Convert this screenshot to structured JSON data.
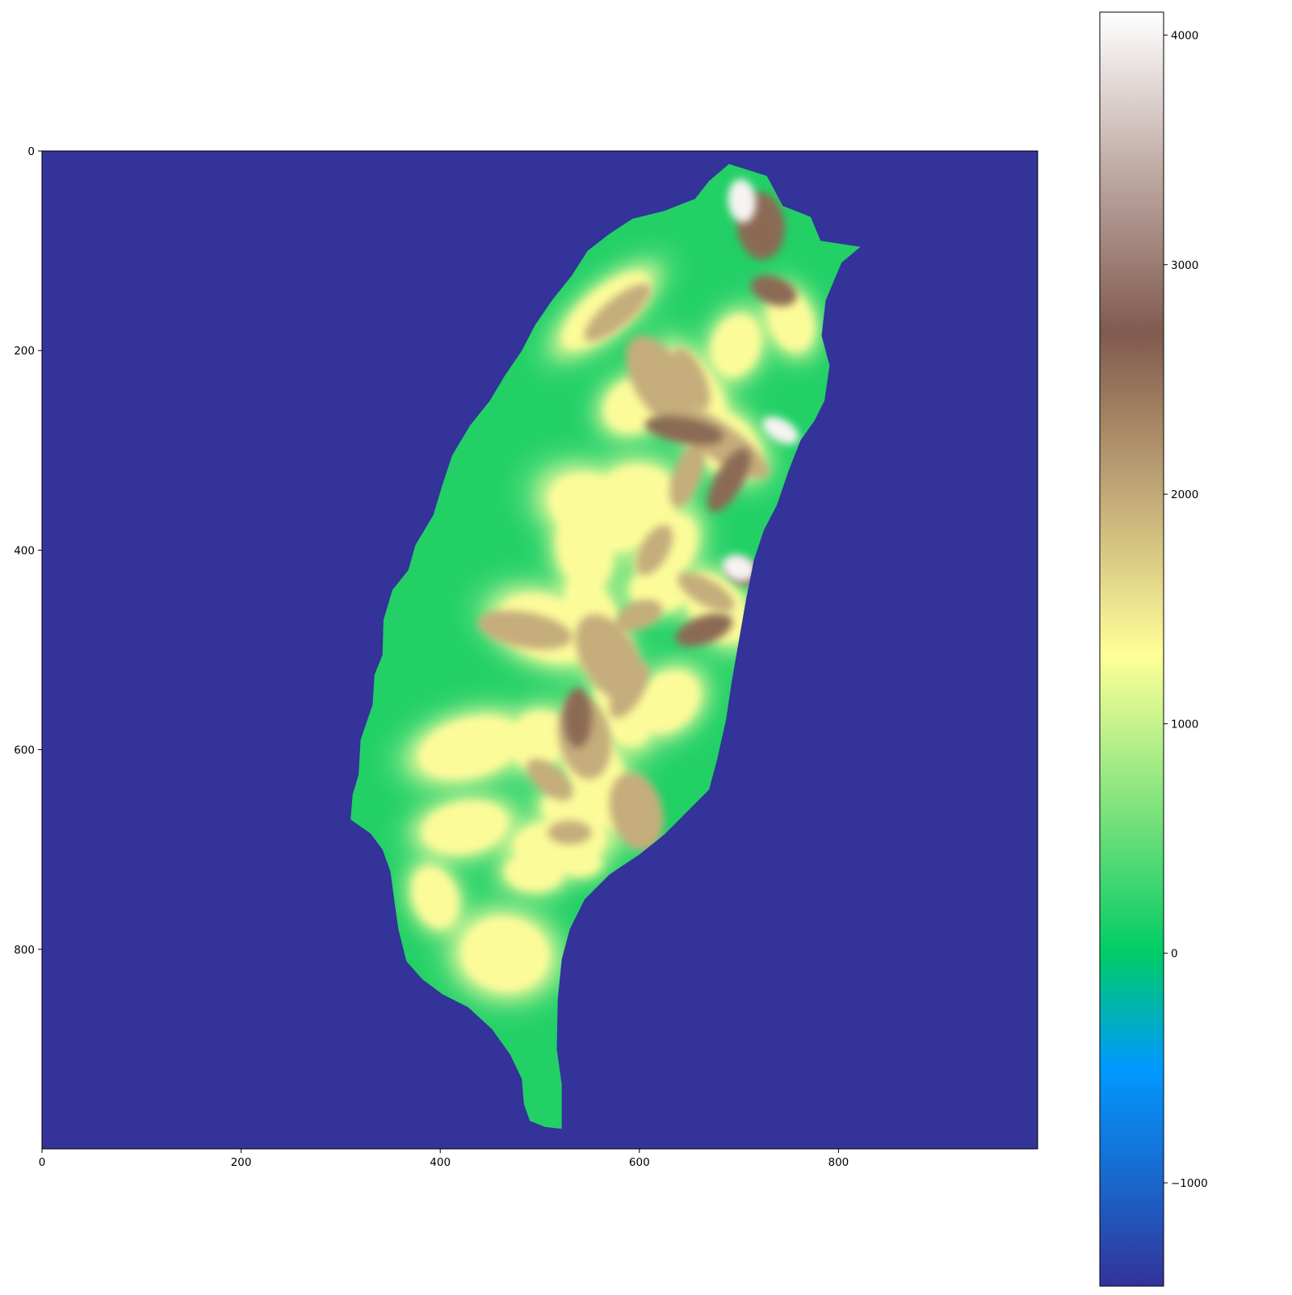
{
  "chart_data": {
    "type": "heatmap",
    "title": "",
    "xlabel": "",
    "ylabel": "",
    "xlim": [
      0,
      1000
    ],
    "ylim": [
      1000,
      0
    ],
    "x_ticks": [
      {
        "value": 0,
        "label": "0"
      },
      {
        "value": 200,
        "label": "200"
      },
      {
        "value": 400,
        "label": "400"
      },
      {
        "value": 600,
        "label": "600"
      },
      {
        "value": 800,
        "label": "800"
      }
    ],
    "y_ticks": [
      {
        "value": 0,
        "label": "0"
      },
      {
        "value": 200,
        "label": "200"
      },
      {
        "value": 400,
        "label": "400"
      },
      {
        "value": 600,
        "label": "600"
      },
      {
        "value": 800,
        "label": "800"
      }
    ],
    "colorbar": {
      "range": [
        -1450,
        4100
      ],
      "ticks": [
        {
          "value": 4000,
          "label": "4000"
        },
        {
          "value": 3000,
          "label": "3000"
        },
        {
          "value": 2000,
          "label": "2000"
        },
        {
          "value": 1000,
          "label": "1000"
        },
        {
          "value": 0,
          "label": "0"
        },
        {
          "value": -1000,
          "label": "−1000"
        }
      ],
      "colormap": [
        {
          "value": -1450,
          "color": "#333399"
        },
        {
          "value": -1000,
          "color": "#1a66cc"
        },
        {
          "value": -500,
          "color": "#0099ff"
        },
        {
          "value": 0,
          "color": "#00cc66"
        },
        {
          "value": 500,
          "color": "#66dd77"
        },
        {
          "value": 1300,
          "color": "#ffff99"
        },
        {
          "value": 2000,
          "color": "#c2a877"
        },
        {
          "value": 2700,
          "color": "#805a4e"
        },
        {
          "value": 3400,
          "color": "#bfa9a3"
        },
        {
          "value": 4100,
          "color": "#ffffff"
        }
      ]
    },
    "colors": {
      "sea": "#333399",
      "lowland": "#22d066",
      "plain": "#55dc7a",
      "hill": "#b5ee8e",
      "upland": "#fcfb9a",
      "mountain": "#c5ad7c",
      "ridge": "#8b6a55",
      "summit": "#f6f3f2"
    },
    "island_outline": [
      [
        690,
        13
      ],
      [
        728,
        25
      ],
      [
        744,
        55
      ],
      [
        772,
        66
      ],
      [
        782,
        90
      ],
      [
        822,
        96
      ],
      [
        803,
        112
      ],
      [
        787,
        150
      ],
      [
        783,
        185
      ],
      [
        791,
        215
      ],
      [
        786,
        250
      ],
      [
        776,
        270
      ],
      [
        762,
        290
      ],
      [
        750,
        320
      ],
      [
        738,
        355
      ],
      [
        725,
        380
      ],
      [
        715,
        410
      ],
      [
        707,
        450
      ],
      [
        700,
        490
      ],
      [
        693,
        530
      ],
      [
        687,
        570
      ],
      [
        678,
        610
      ],
      [
        670,
        640
      ],
      [
        650,
        660
      ],
      [
        625,
        685
      ],
      [
        600,
        705
      ],
      [
        570,
        725
      ],
      [
        545,
        750
      ],
      [
        530,
        780
      ],
      [
        522,
        810
      ],
      [
        518,
        850
      ],
      [
        517,
        900
      ],
      [
        522,
        935
      ],
      [
        522,
        980
      ],
      [
        505,
        978
      ],
      [
        490,
        972
      ],
      [
        484,
        955
      ],
      [
        482,
        930
      ],
      [
        470,
        905
      ],
      [
        452,
        880
      ],
      [
        428,
        858
      ],
      [
        402,
        845
      ],
      [
        382,
        830
      ],
      [
        366,
        812
      ],
      [
        358,
        780
      ],
      [
        354,
        752
      ],
      [
        350,
        722
      ],
      [
        342,
        700
      ],
      [
        330,
        684
      ],
      [
        310,
        670
      ],
      [
        312,
        645
      ],
      [
        318,
        625
      ],
      [
        320,
        590
      ],
      [
        332,
        555
      ],
      [
        334,
        525
      ],
      [
        342,
        505
      ],
      [
        343,
        470
      ],
      [
        352,
        440
      ],
      [
        368,
        420
      ],
      [
        375,
        395
      ],
      [
        393,
        365
      ],
      [
        402,
        335
      ],
      [
        412,
        305
      ],
      [
        430,
        275
      ],
      [
        450,
        250
      ],
      [
        465,
        225
      ],
      [
        482,
        200
      ],
      [
        495,
        175
      ],
      [
        512,
        150
      ],
      [
        532,
        125
      ],
      [
        548,
        100
      ],
      [
        570,
        83
      ],
      [
        593,
        68
      ],
      [
        625,
        60
      ],
      [
        656,
        48
      ],
      [
        670,
        30
      ]
    ],
    "hills": [
      [
        566,
        160,
        55,
        22,
        -40
      ],
      [
        655,
        245,
        50,
        26,
        60
      ],
      [
        697,
        195,
        32,
        24,
        -70
      ],
      [
        595,
        255,
        32,
        26,
        -30
      ],
      [
        685,
        292,
        42,
        28,
        40
      ],
      [
        598,
        348,
        42,
        34,
        0
      ],
      [
        560,
        362,
        36,
        55,
        -65
      ],
      [
        628,
        400,
        40,
        26,
        -60
      ],
      [
        678,
        458,
        40,
        26,
        50
      ],
      [
        620,
        440,
        30,
        22,
        0
      ],
      [
        628,
        552,
        36,
        28,
        -40
      ],
      [
        585,
        558,
        40,
        28,
        70
      ],
      [
        556,
        478,
        26,
        58,
        -20
      ],
      [
        508,
        478,
        32,
        52,
        -70
      ],
      [
        545,
        398,
        44,
        28,
        80
      ],
      [
        556,
        625,
        28,
        58,
        -20
      ],
      [
        533,
        663,
        32,
        22,
        20
      ],
      [
        430,
        598,
        30,
        54,
        75
      ],
      [
        498,
        590,
        32,
        28,
        -30
      ],
      [
        425,
        678,
        44,
        26,
        -10
      ],
      [
        520,
        693,
        48,
        24,
        -5
      ],
      [
        540,
        713,
        22,
        14,
        0
      ],
      [
        495,
        722,
        30,
        20,
        0
      ],
      [
        395,
        748,
        22,
        32,
        -20
      ],
      [
        465,
        805,
        45,
        38,
        10
      ],
      [
        752,
        170,
        22,
        32,
        -20
      ]
    ],
    "mountains": [
      [
        578,
        162,
        42,
        14,
        -40
      ],
      [
        652,
        228,
        34,
        14,
        65
      ],
      [
        620,
        230,
        26,
        50,
        -30
      ],
      [
        680,
        291,
        60,
        18,
        35
      ],
      [
        648,
        325,
        34,
        14,
        -70
      ],
      [
        615,
        400,
        28,
        14,
        -60
      ],
      [
        667,
        442,
        32,
        13,
        30
      ],
      [
        600,
        465,
        24,
        14,
        -20
      ],
      [
        590,
        540,
        32,
        14,
        -60
      ],
      [
        570,
        508,
        28,
        48,
        -30
      ],
      [
        485,
        480,
        18,
        48,
        -80
      ],
      [
        545,
        588,
        26,
        42,
        -10
      ],
      [
        510,
        630,
        28,
        14,
        40
      ],
      [
        530,
        683,
        22,
        12,
        0
      ],
      [
        597,
        662,
        26,
        40,
        -15
      ]
    ],
    "ridges": [
      [
        722,
        75,
        24,
        34,
        -5
      ],
      [
        735,
        140,
        24,
        14,
        20
      ],
      [
        645,
        280,
        40,
        13,
        10
      ],
      [
        690,
        330,
        36,
        14,
        -60
      ],
      [
        665,
        480,
        30,
        14,
        -20
      ],
      [
        538,
        568,
        14,
        30,
        0
      ],
      [
        705,
        423,
        18,
        12,
        20
      ]
    ],
    "summits": [
      [
        703,
        50,
        14,
        22,
        -5
      ],
      [
        742,
        280,
        20,
        11,
        30
      ],
      [
        700,
        418,
        17,
        13,
        20
      ]
    ]
  }
}
